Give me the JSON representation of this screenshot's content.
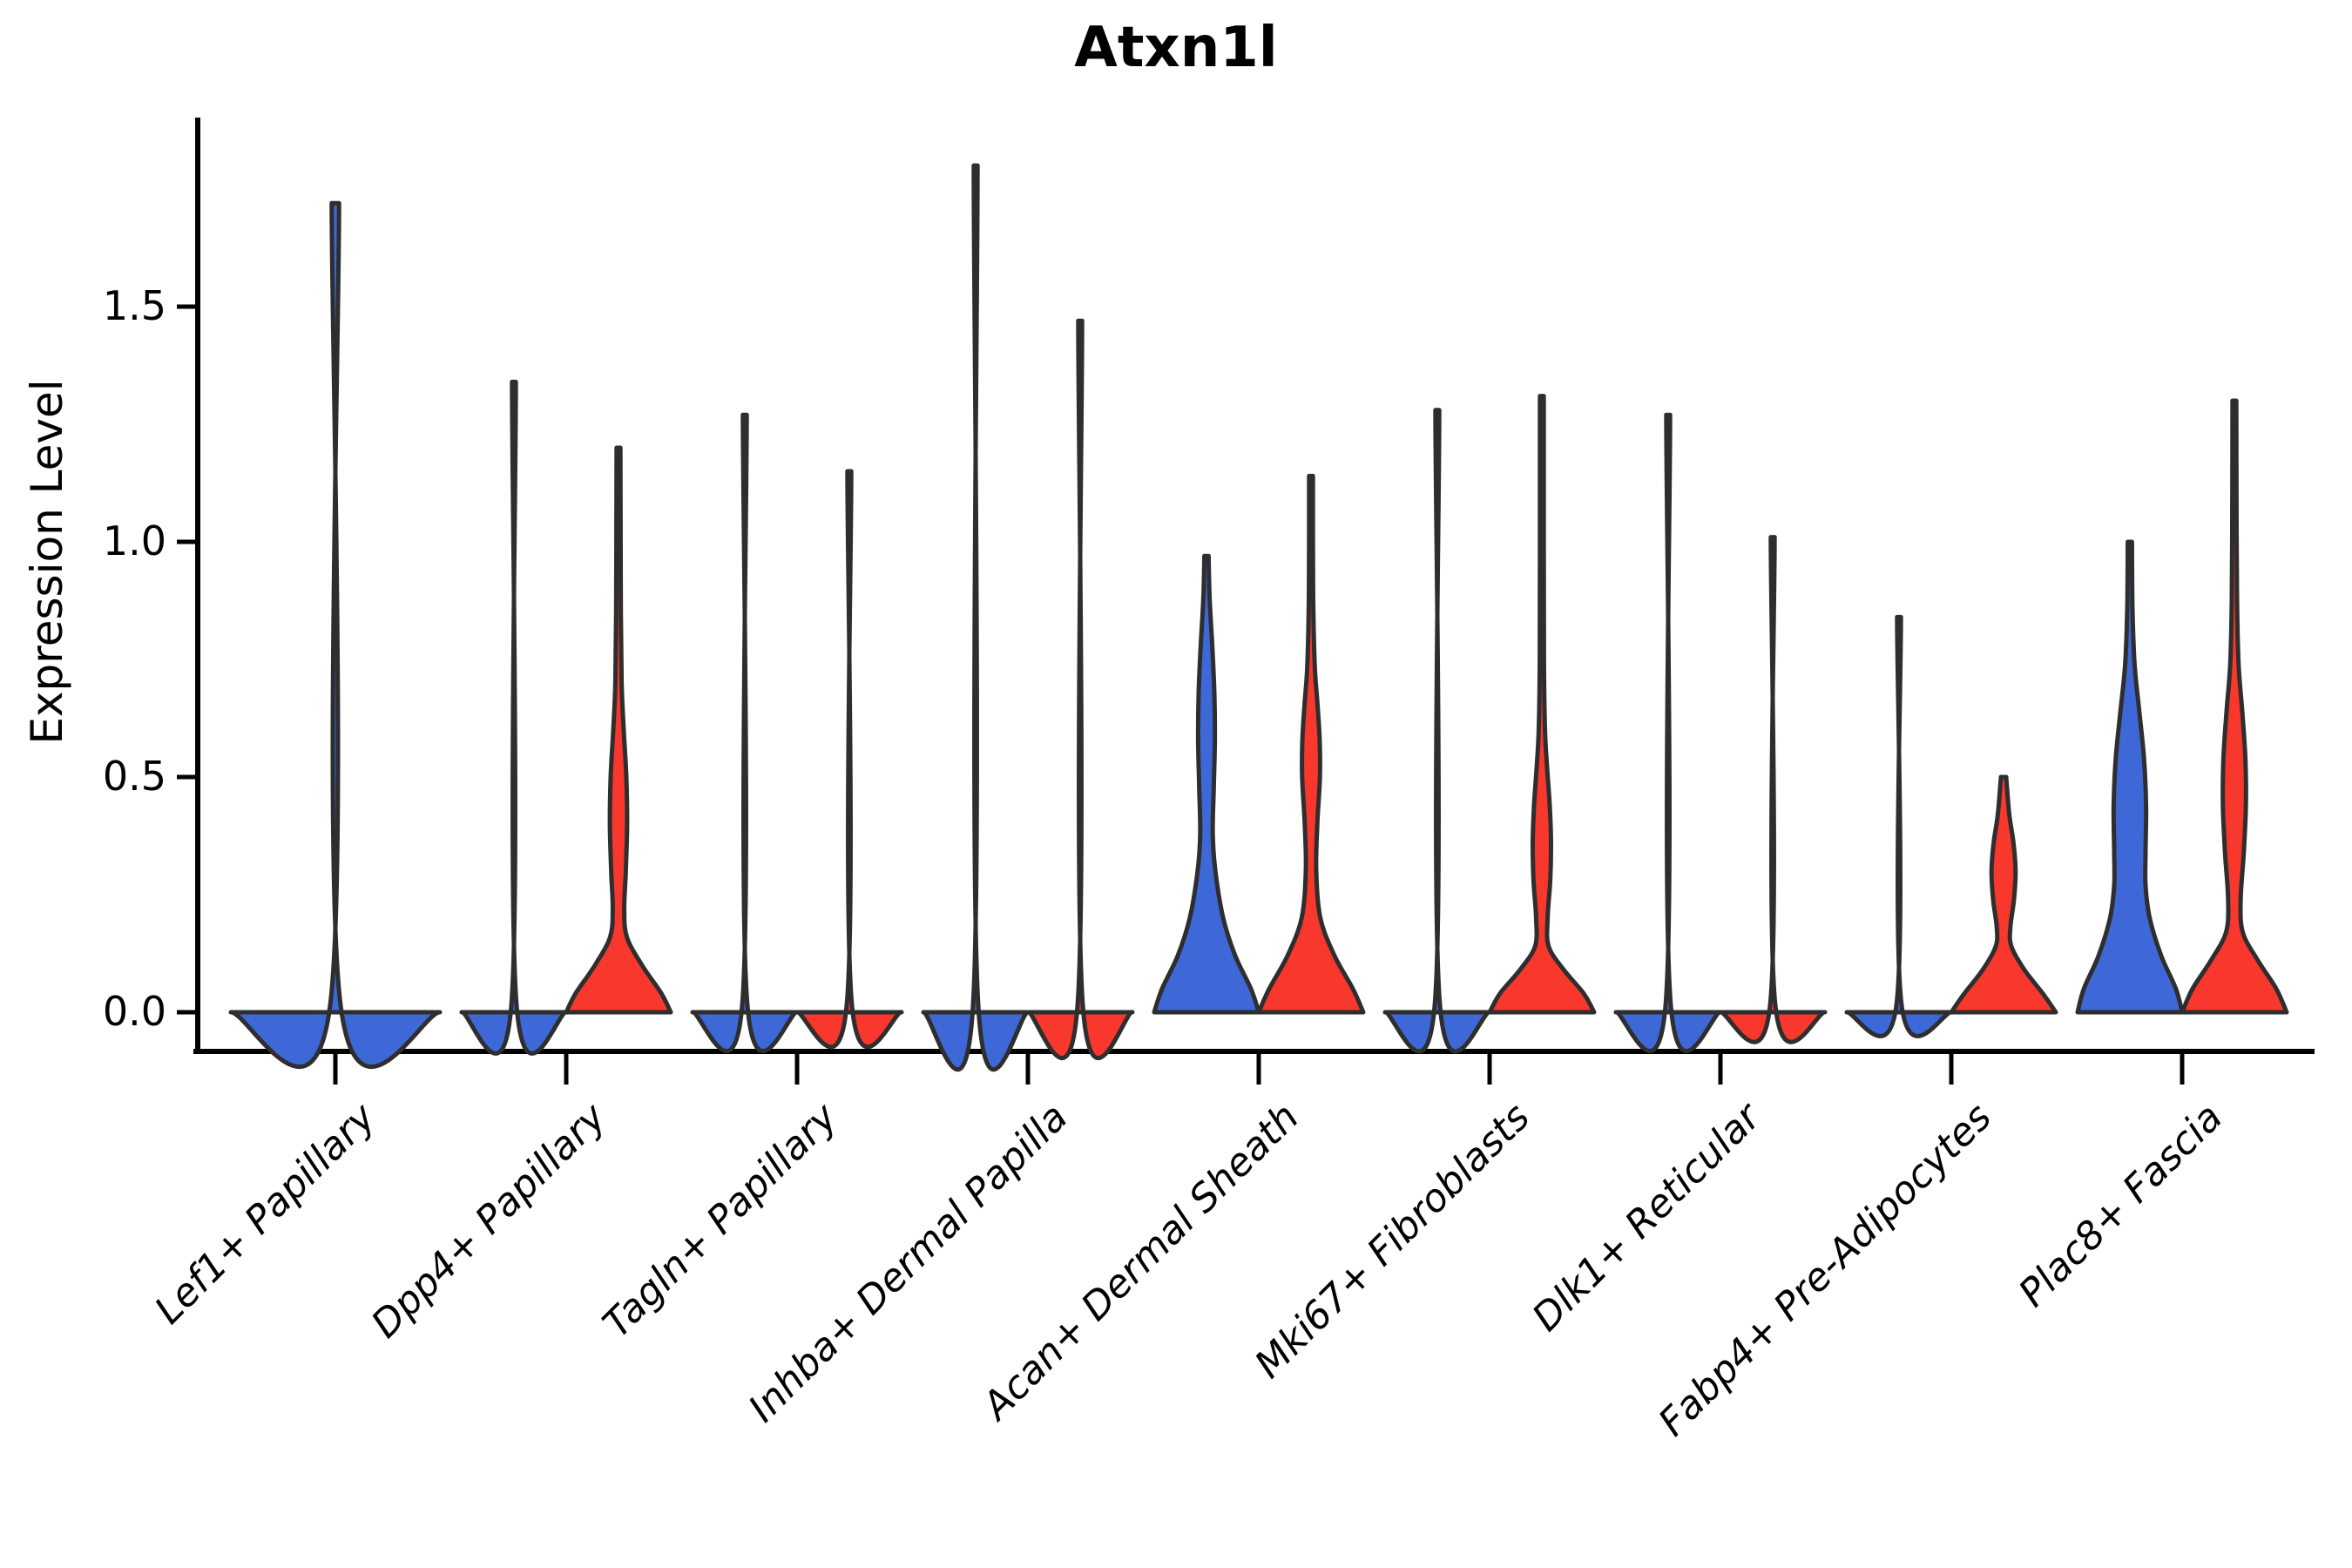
{
  "chart_data": {
    "type": "violin",
    "title": "Atxn1l",
    "xlabel": "",
    "ylabel": "Expression Level",
    "yticks": [
      0.0,
      0.5,
      1.0,
      1.5
    ],
    "ytick_labels": [
      "0.0",
      "0.5",
      "1.0",
      "1.5"
    ],
    "ylim": [
      -0.083,
      1.9
    ],
    "grid": false,
    "legend": "none",
    "split_violin": true,
    "colors": {
      "left_series_fill": "#3E68D8",
      "right_series_fill": "#F8372D",
      "outline": "#2E2E2E",
      "background": "#FFFFFF"
    },
    "categories": [
      {
        "label": "Lef1+ Papillary",
        "violins": [
          {
            "side": "full",
            "color": "#3E68D8",
            "shape": "flat",
            "max": 1.72
          }
        ]
      },
      {
        "label": "Dpp4+ Papillary",
        "violins": [
          {
            "side": "left",
            "color": "#3E68D8",
            "shape": "flat",
            "max": 1.34
          },
          {
            "side": "right",
            "color": "#F8372D",
            "shape": "profile",
            "max": 1.2,
            "profile": [
              [
                0,
                1
              ],
              [
                0.04,
                0.82
              ],
              [
                0.1,
                0.45
              ],
              [
                0.16,
                0.16
              ],
              [
                0.22,
                0.11
              ],
              [
                0.3,
                0.14
              ],
              [
                0.4,
                0.165
              ],
              [
                0.5,
                0.15
              ],
              [
                0.6,
                0.1
              ],
              [
                0.7,
                0.06
              ],
              [
                0.85,
                0.045
              ],
              [
                1.05,
                0.04
              ],
              [
                1.2,
                0.035
              ]
            ]
          }
        ]
      },
      {
        "label": "Tagln+ Papillary",
        "violins": [
          {
            "side": "left",
            "color": "#3E68D8",
            "shape": "flat",
            "max": 1.27
          },
          {
            "side": "right",
            "color": "#F8372D",
            "shape": "flat",
            "max": 1.15
          }
        ]
      },
      {
        "label": "Inhba+ Dermal Papilla",
        "violins": [
          {
            "side": "left",
            "color": "#3E68D8",
            "shape": "flat",
            "max": 1.8
          },
          {
            "side": "right",
            "color": "#F8372D",
            "shape": "flat",
            "max": 1.47
          }
        ]
      },
      {
        "label": "Acan+ Dermal Sheath",
        "violins": [
          {
            "side": "left",
            "color": "#3E68D8",
            "shape": "profile",
            "max": 0.97,
            "profile": [
              [
                0,
                1
              ],
              [
                0.05,
                0.85
              ],
              [
                0.12,
                0.55
              ],
              [
                0.2,
                0.32
              ],
              [
                0.3,
                0.17
              ],
              [
                0.38,
                0.12
              ],
              [
                0.48,
                0.14
              ],
              [
                0.58,
                0.16
              ],
              [
                0.68,
                0.15
              ],
              [
                0.78,
                0.11
              ],
              [
                0.88,
                0.06
              ],
              [
                0.97,
                0.04
              ]
            ]
          },
          {
            "side": "right",
            "color": "#F8372D",
            "shape": "profile",
            "max": 1.14,
            "profile": [
              [
                0,
                1
              ],
              [
                0.05,
                0.8
              ],
              [
                0.12,
                0.45
              ],
              [
                0.2,
                0.18
              ],
              [
                0.3,
                0.1
              ],
              [
                0.4,
                0.12
              ],
              [
                0.5,
                0.17
              ],
              [
                0.58,
                0.165
              ],
              [
                0.66,
                0.12
              ],
              [
                0.74,
                0.07
              ],
              [
                0.9,
                0.04
              ],
              [
                1.14,
                0.035
              ]
            ]
          }
        ]
      },
      {
        "label": "Mki67+ Fibroblasts",
        "violins": [
          {
            "side": "left",
            "color": "#3E68D8",
            "shape": "flat",
            "max": 1.28
          },
          {
            "side": "right",
            "color": "#F8372D",
            "shape": "profile",
            "max": 1.31,
            "profile": [
              [
                0,
                1
              ],
              [
                0.04,
                0.8
              ],
              [
                0.09,
                0.42
              ],
              [
                0.14,
                0.13
              ],
              [
                0.2,
                0.11
              ],
              [
                0.28,
                0.16
              ],
              [
                0.36,
                0.175
              ],
              [
                0.44,
                0.15
              ],
              [
                0.52,
                0.1
              ],
              [
                0.6,
                0.06
              ],
              [
                0.75,
                0.04
              ],
              [
                1.0,
                0.035
              ],
              [
                1.31,
                0.03
              ]
            ]
          }
        ]
      },
      {
        "label": "Dlk1+ Reticular",
        "violins": [
          {
            "side": "left",
            "color": "#3E68D8",
            "shape": "flat",
            "max": 1.27
          },
          {
            "side": "right",
            "color": "#F8372D",
            "shape": "flat",
            "max": 1.01
          }
        ]
      },
      {
        "label": "Fabp4+ Pre-Adipocytes",
        "violins": [
          {
            "side": "left",
            "color": "#3E68D8",
            "shape": "flat",
            "max": 0.84
          },
          {
            "side": "right",
            "color": "#F8372D",
            "shape": "profile",
            "max": 0.5,
            "profile": [
              [
                0,
                1
              ],
              [
                0.04,
                0.75
              ],
              [
                0.09,
                0.4
              ],
              [
                0.14,
                0.15
              ],
              [
                0.18,
                0.13
              ],
              [
                0.24,
                0.2
              ],
              [
                0.3,
                0.23
              ],
              [
                0.36,
                0.19
              ],
              [
                0.42,
                0.11
              ],
              [
                0.5,
                0.05
              ]
            ]
          }
        ]
      },
      {
        "label": "Plac8+ Fascia",
        "violins": [
          {
            "side": "left",
            "color": "#3E68D8",
            "shape": "profile",
            "max": 1.0,
            "profile": [
              [
                0,
                1
              ],
              [
                0.05,
                0.88
              ],
              [
                0.12,
                0.6
              ],
              [
                0.2,
                0.38
              ],
              [
                0.27,
                0.3
              ],
              [
                0.34,
                0.3
              ],
              [
                0.44,
                0.31
              ],
              [
                0.54,
                0.27
              ],
              [
                0.64,
                0.18
              ],
              [
                0.74,
                0.09
              ],
              [
                0.86,
                0.05
              ],
              [
                1.0,
                0.04
              ]
            ]
          },
          {
            "side": "right",
            "color": "#F8372D",
            "shape": "profile",
            "max": 1.3,
            "profile": [
              [
                0,
                1
              ],
              [
                0.05,
                0.8
              ],
              [
                0.11,
                0.45
              ],
              [
                0.17,
                0.16
              ],
              [
                0.24,
                0.12
              ],
              [
                0.34,
                0.18
              ],
              [
                0.44,
                0.22
              ],
              [
                0.54,
                0.21
              ],
              [
                0.64,
                0.15
              ],
              [
                0.74,
                0.08
              ],
              [
                0.88,
                0.05
              ],
              [
                1.1,
                0.04
              ],
              [
                1.3,
                0.035
              ]
            ]
          }
        ]
      }
    ]
  }
}
